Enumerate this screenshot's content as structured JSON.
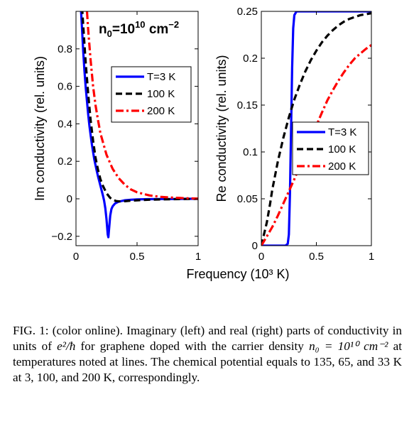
{
  "chart_data": [
    {
      "type": "line",
      "panel": "left",
      "ylabel": "Im conductivity (rel. units)",
      "xlim": [
        0,
        1
      ],
      "ylim": [
        -0.25,
        1.0
      ],
      "xticks": [
        0,
        0.5,
        1
      ],
      "xtick_labels": [
        "0",
        "0.5",
        "1"
      ],
      "yticks": [
        -0.2,
        0,
        0.2,
        0.4,
        0.6,
        0.8
      ],
      "ytick_labels": [
        "−0.2",
        "0",
        "0.2",
        "0.4",
        "0.6",
        "0.8"
      ],
      "annotation": {
        "base": "n",
        "sub": "0",
        "mid": "=10",
        "sup1": "10",
        "tail": " cm",
        "sup2": "−2"
      },
      "legend_position": "center-right",
      "series": [
        {
          "name": "T=3 K",
          "color": "#0000ff",
          "style": "solid",
          "x": [
            0.04,
            0.05,
            0.06,
            0.07,
            0.08,
            0.09,
            0.1,
            0.11,
            0.12,
            0.13,
            0.14,
            0.15,
            0.16,
            0.17,
            0.18,
            0.19,
            0.2,
            0.21,
            0.22,
            0.23,
            0.24,
            0.25,
            0.26,
            0.265,
            0.27,
            0.28,
            0.29,
            0.3,
            0.32,
            0.35,
            0.4,
            0.45,
            0.5,
            0.6,
            0.7,
            0.8,
            0.9,
            1.0
          ],
          "y": [
            1.02,
            0.9,
            0.78,
            0.68,
            0.59,
            0.52,
            0.45,
            0.39,
            0.34,
            0.29,
            0.25,
            0.21,
            0.18,
            0.15,
            0.12,
            0.095,
            0.07,
            0.045,
            0.02,
            -0.01,
            -0.05,
            -0.11,
            -0.19,
            -0.205,
            -0.17,
            -0.09,
            -0.055,
            -0.04,
            -0.025,
            -0.015,
            -0.008,
            -0.005,
            -0.003,
            -0.002,
            -0.001,
            -0.001,
            0.0,
            0.0
          ]
        },
        {
          "name": "100 K",
          "color": "#000000",
          "style": "dash",
          "x": [
            0.05,
            0.06,
            0.07,
            0.08,
            0.09,
            0.1,
            0.12,
            0.14,
            0.16,
            0.18,
            0.2,
            0.22,
            0.25,
            0.28,
            0.3,
            0.33,
            0.36,
            0.4,
            0.45,
            0.5,
            0.6,
            0.7,
            0.8,
            0.9,
            1.0
          ],
          "y": [
            1.02,
            0.92,
            0.82,
            0.72,
            0.64,
            0.56,
            0.42,
            0.31,
            0.22,
            0.155,
            0.105,
            0.07,
            0.03,
            0.005,
            -0.005,
            -0.012,
            -0.014,
            -0.013,
            -0.01,
            -0.008,
            -0.005,
            -0.003,
            -0.002,
            -0.001,
            0.0
          ]
        },
        {
          "name": "200 K",
          "color": "#ff0000",
          "style": "dashdot",
          "x": [
            0.09,
            0.1,
            0.12,
            0.14,
            0.16,
            0.18,
            0.2,
            0.25,
            0.3,
            0.35,
            0.4,
            0.45,
            0.5,
            0.6,
            0.7,
            0.8,
            0.9,
            1.0
          ],
          "y": [
            1.0,
            0.9,
            0.74,
            0.6,
            0.5,
            0.42,
            0.35,
            0.235,
            0.16,
            0.11,
            0.075,
            0.05,
            0.035,
            0.018,
            0.01,
            0.006,
            0.003,
            0.001
          ]
        }
      ]
    },
    {
      "type": "line",
      "panel": "right",
      "ylabel": "Re conductivity (rel. units)",
      "xlabel": "Frequency (10³ K)",
      "xlim": [
        0,
        1
      ],
      "ylim": [
        0,
        0.25
      ],
      "xticks": [
        0,
        0.5,
        1
      ],
      "xtick_labels": [
        "0",
        "0.5",
        "1"
      ],
      "yticks": [
        0,
        0.05,
        0.1,
        0.15,
        0.2,
        0.25
      ],
      "ytick_labels": [
        "0",
        "0.05",
        "0.1",
        "0.15",
        "0.2",
        "0.25"
      ],
      "legend_position": "lower-right",
      "series": [
        {
          "name": "T=3 K",
          "color": "#0000ff",
          "style": "solid",
          "x": [
            0.0,
            0.22,
            0.24,
            0.25,
            0.26,
            0.27,
            0.28,
            0.29,
            0.3,
            0.32,
            0.35,
            0.5,
            1.0
          ],
          "y": [
            0.0,
            0.0,
            0.002,
            0.012,
            0.055,
            0.125,
            0.19,
            0.232,
            0.246,
            0.25,
            0.25,
            0.25,
            0.25
          ]
        },
        {
          "name": "100 K",
          "color": "#000000",
          "style": "dash",
          "x": [
            0.0,
            0.02,
            0.05,
            0.08,
            0.1,
            0.15,
            0.2,
            0.25,
            0.3,
            0.35,
            0.4,
            0.45,
            0.5,
            0.55,
            0.6,
            0.65,
            0.7,
            0.75,
            0.8,
            0.85,
            0.9,
            0.95,
            1.0
          ],
          "y": [
            0.0,
            0.01,
            0.025,
            0.045,
            0.06,
            0.09,
            0.115,
            0.137,
            0.156,
            0.172,
            0.186,
            0.198,
            0.208,
            0.217,
            0.224,
            0.23,
            0.235,
            0.239,
            0.242,
            0.244,
            0.246,
            0.247,
            0.248
          ]
        },
        {
          "name": "200 K",
          "color": "#ff0000",
          "style": "dashdot",
          "x": [
            0.0,
            0.05,
            0.1,
            0.15,
            0.2,
            0.25,
            0.3,
            0.35,
            0.4,
            0.45,
            0.5,
            0.55,
            0.6,
            0.65,
            0.7,
            0.75,
            0.8,
            0.85,
            0.9,
            0.95,
            1.0
          ],
          "y": [
            0.0,
            0.01,
            0.02,
            0.032,
            0.045,
            0.058,
            0.071,
            0.085,
            0.1,
            0.115,
            0.128,
            0.142,
            0.155,
            0.166,
            0.176,
            0.185,
            0.193,
            0.2,
            0.205,
            0.21,
            0.214
          ]
        }
      ]
    }
  ],
  "caption": {
    "prefix": "FIG. 1: (color online). Imaginary (left) and real (right) parts of conductivity in units of ",
    "units": "e²/ħ",
    "middle": " for graphene doped with the carrier density ",
    "density": "n₀ = 10¹⁰ cm⁻²",
    "suffix": " at temperatures noted at lines. The chemical potential equals to 135, 65, and 33 K at 3, 100, and 200 K, correspondingly."
  }
}
